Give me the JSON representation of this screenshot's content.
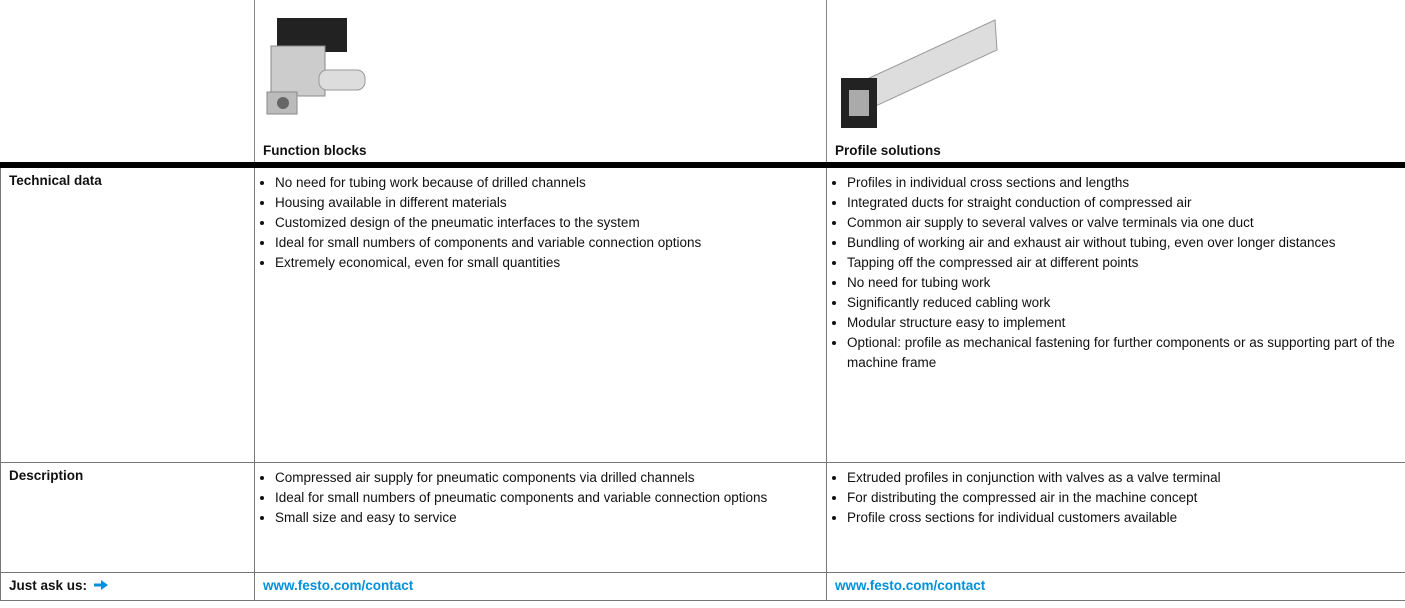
{
  "table": {
    "columns": [
      "Function blocks",
      "Profile solutions"
    ],
    "rows": [
      {
        "label": "Technical data",
        "cells": [
          [
            "No need for tubing work because of drilled channels",
            "Housing available in different materials",
            "Customized design of the pneumatic interfaces to the system",
            "Ideal for small numbers of components and variable connection options",
            "Extremely economical, even for small quantities"
          ],
          [
            "Profiles in individual cross sections and lengths",
            "Integrated ducts for straight conduction of compressed air",
            "Common air supply to several valves or valve terminals via one duct",
            "Bundling of working air and exhaust air without tubing, even over longer distances",
            "Tapping off the compressed air at different points",
            "No need for tubing work",
            "Significantly reduced cabling work",
            "Modular structure easy to implement",
            "Optional: profile as mechanical fastening for further components or as supporting part of the machine frame"
          ]
        ]
      },
      {
        "label": "Description",
        "cells": [
          [
            "Compressed air supply for pneumatic components via drilled channels",
            "Ideal for small numbers of pneumatic components and variable connection options",
            "Small size and easy to service"
          ],
          [
            "Extruded profiles in conjunction with valves as a valve terminal",
            "For distributing the compressed air in the machine concept",
            "Profile cross sections for individual customers available"
          ]
        ]
      }
    ],
    "contact": {
      "label": "Just ask us:",
      "links": [
        "www.festo.com/contact",
        "www.festo.com/contact"
      ]
    }
  }
}
